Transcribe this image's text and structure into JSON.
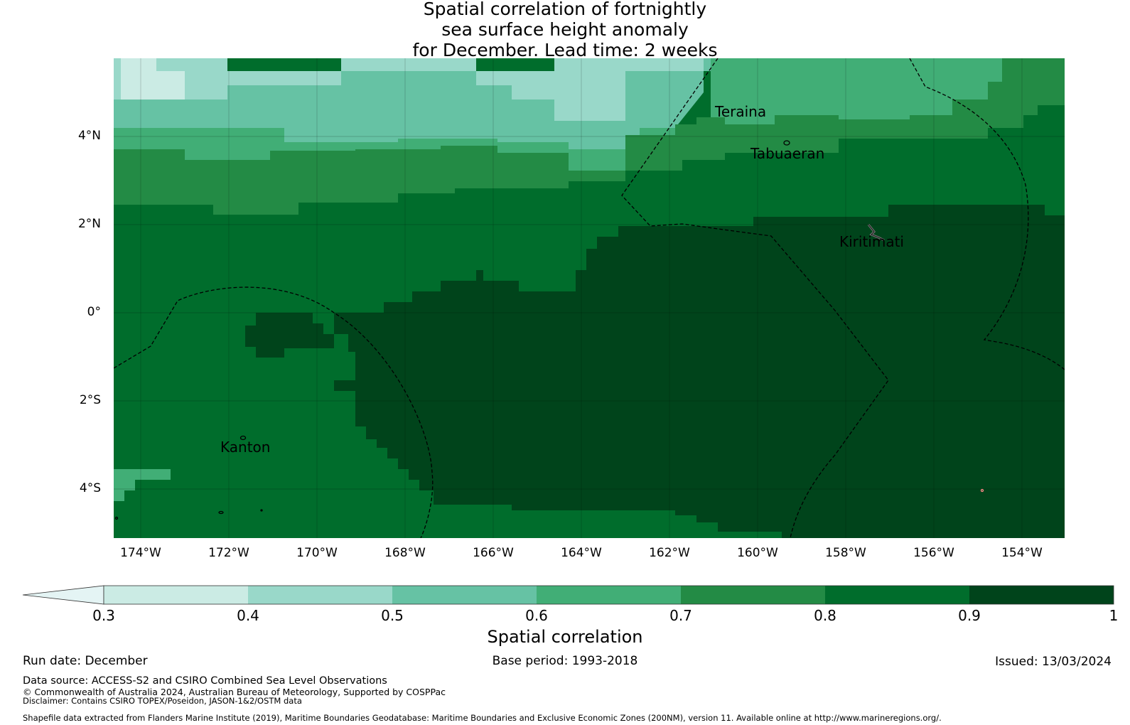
{
  "title": {
    "line1": "Spatial correlation of fortnightly",
    "line2": "sea surface height anomaly",
    "line3": "for December. Lead time: 2 weeks"
  },
  "map": {
    "lon_range": [
      -174.6,
      -153.0
    ],
    "lat_range": [
      -5.2,
      5.8
    ],
    "lat_ticks": [
      {
        "value": 4,
        "label": "4°N"
      },
      {
        "value": 2,
        "label": "2°N"
      },
      {
        "value": 0,
        "label": "0°"
      },
      {
        "value": -2,
        "label": "2°S"
      },
      {
        "value": -4,
        "label": "4°S"
      }
    ],
    "lon_ticks": [
      {
        "value": -174,
        "label": "174°W"
      },
      {
        "value": -172,
        "label": "172°W"
      },
      {
        "value": -170,
        "label": "170°W"
      },
      {
        "value": -168,
        "label": "168°W"
      },
      {
        "value": -166,
        "label": "166°W"
      },
      {
        "value": -164,
        "label": "164°W"
      },
      {
        "value": -162,
        "label": "162°W"
      },
      {
        "value": -160,
        "label": "160°W"
      },
      {
        "value": -158,
        "label": "158°W"
      },
      {
        "value": -156,
        "label": "156°W"
      },
      {
        "value": -154,
        "label": "154°W"
      }
    ],
    "places": [
      {
        "name": "Teraina",
        "lon": -161.0,
        "lat": 4.55
      },
      {
        "name": "Tabuaeran",
        "lon": -159.9,
        "lat": 3.6
      },
      {
        "name": "Kiritimati",
        "lon": -158.2,
        "lat": 1.55
      },
      {
        "name": "Kanton",
        "lon": -172.3,
        "lat": -3.1
      }
    ],
    "correlation_field_description_classes": [
      "0.3-0.4",
      "0.4-0.5",
      "0.5-0.6",
      "0.6-0.7",
      "0.7-0.8",
      "0.8-0.9",
      "0.9-1"
    ]
  },
  "colorbar": {
    "colors": [
      "#e4f4f4",
      "#cbebe4",
      "#99d8c9",
      "#66c2a4",
      "#41ae76",
      "#238b45",
      "#006d2c",
      "#00441b"
    ],
    "ticks": [
      "0.3",
      "0.4",
      "0.5",
      "0.6",
      "0.7",
      "0.8",
      "0.9",
      "1"
    ],
    "label": "Spatial correlation"
  },
  "footer": {
    "run_date": "Run date: December",
    "base_period": "Base period: 1993-2018",
    "issued": "Issued: 13/03/2024",
    "data_source": "Data source: ACCESS-S2 and CSIRO Combined Sea Level Observations",
    "copyright": "© Commonwealth of Australia 2024, Australian Bureau of Meteorology, Supported by COSPPac",
    "disclaimer": "Disclaimer: Contains CSIRO TOPEX/Poseidon, JASON-1&2/OSTM data",
    "shapefile": "Shapefile data extracted from Flanders Marine Institute (2019), Maritime Boundaries Geodatabase: Maritime Boundaries and Exclusive Economic Zones (200NM), version 11. Available online at http://www.marineregions.org/."
  }
}
